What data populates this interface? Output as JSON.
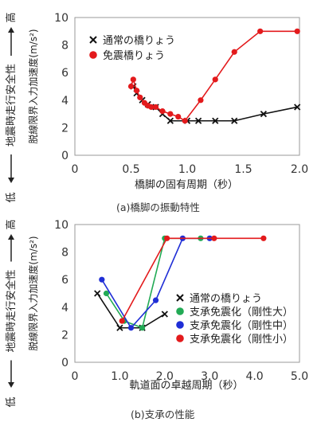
{
  "chart_data": [
    {
      "type": "scatter",
      "xlabel": "橋脚の固有周期（秒）",
      "ylabel_outer": "地震時走行安全性",
      "ylabel_inner": "脱線限界入力加速度(m/s²)",
      "axis_arrow_high": "高",
      "axis_arrow_low": "低",
      "caption": "(a)橋脚の振動特性",
      "xlim": [
        0,
        2.0
      ],
      "ylim": [
        0,
        10
      ],
      "xticks": [
        "0",
        "0.5",
        "1.0",
        "1.5",
        "2.0"
      ],
      "yticks": [
        "0",
        "2",
        "4",
        "6",
        "8",
        "10"
      ],
      "legend_position": "top-left",
      "grid": false,
      "series": [
        {
          "name": "通常の橋りょう",
          "color": "#111111",
          "marker": "x",
          "points": [
            [
              0.52,
              5.0
            ],
            [
              0.55,
              4.5
            ],
            [
              0.6,
              4.0
            ],
            [
              0.65,
              3.7
            ],
            [
              0.72,
              3.5
            ],
            [
              0.78,
              3.0
            ],
            [
              0.85,
              2.5
            ],
            [
              1.0,
              2.5
            ],
            [
              1.1,
              2.5
            ],
            [
              1.25,
              2.5
            ],
            [
              1.42,
              2.5
            ],
            [
              1.68,
              3.0
            ],
            [
              1.98,
              3.5
            ]
          ]
        },
        {
          "name": "免震橋りょう",
          "color": "#e31a1c",
          "marker": "circle",
          "points": [
            [
              0.5,
              5.0
            ],
            [
              0.52,
              5.5
            ],
            [
              0.55,
              4.7
            ],
            [
              0.58,
              4.2
            ],
            [
              0.62,
              3.8
            ],
            [
              0.65,
              3.6
            ],
            [
              0.68,
              3.5
            ],
            [
              0.72,
              3.5
            ],
            [
              0.78,
              3.2
            ],
            [
              0.85,
              3.0
            ],
            [
              0.92,
              2.8
            ],
            [
              0.98,
              2.5
            ],
            [
              1.12,
              4.0
            ],
            [
              1.25,
              5.5
            ],
            [
              1.42,
              7.5
            ],
            [
              1.65,
              9.0
            ],
            [
              1.98,
              9.0
            ]
          ]
        }
      ]
    },
    {
      "type": "scatter",
      "xlabel": "軌道面の卓越周期（秒）",
      "ylabel_outer": "地震時走行安全性",
      "ylabel_inner": "脱線限界入力加速度(m/s²)",
      "axis_arrow_high": "高",
      "axis_arrow_low": "低",
      "caption": "(b)支承の性能",
      "xlim": [
        0,
        5.0
      ],
      "ylim": [
        0,
        10
      ],
      "xticks": [
        "0",
        "1.0",
        "2.0",
        "3.0",
        "4.0",
        "5.0"
      ],
      "yticks": [
        "0",
        "2",
        "4",
        "6",
        "8",
        "10"
      ],
      "legend_position": "bottom-right",
      "grid": false,
      "series": [
        {
          "name": "通常の橋りょう",
          "color": "#111111",
          "marker": "x",
          "points": [
            [
              0.5,
              5.0
            ],
            [
              1.0,
              2.5
            ],
            [
              1.5,
              2.5
            ],
            [
              2.0,
              3.5
            ]
          ]
        },
        {
          "name": "支承免震化（剛性大）",
          "color": "#22aa55",
          "marker": "circle",
          "points": [
            [
              0.7,
              5.0
            ],
            [
              1.1,
              3.0
            ],
            [
              1.5,
              2.5
            ],
            [
              2.0,
              9.0
            ],
            [
              2.8,
              9.0
            ]
          ]
        },
        {
          "name": "支承免震化（剛性中）",
          "color": "#1f2ed6",
          "marker": "circle",
          "points": [
            [
              0.6,
              6.0
            ],
            [
              1.25,
              2.5
            ],
            [
              1.8,
              4.5
            ],
            [
              2.4,
              9.0
            ],
            [
              3.0,
              9.0
            ]
          ]
        },
        {
          "name": "支承免震化（剛性小）",
          "color": "#e31a1c",
          "marker": "circle",
          "points": [
            [
              1.05,
              3.0
            ],
            [
              2.05,
              9.0
            ],
            [
              3.1,
              9.0
            ],
            [
              4.2,
              9.0
            ]
          ]
        }
      ]
    }
  ]
}
